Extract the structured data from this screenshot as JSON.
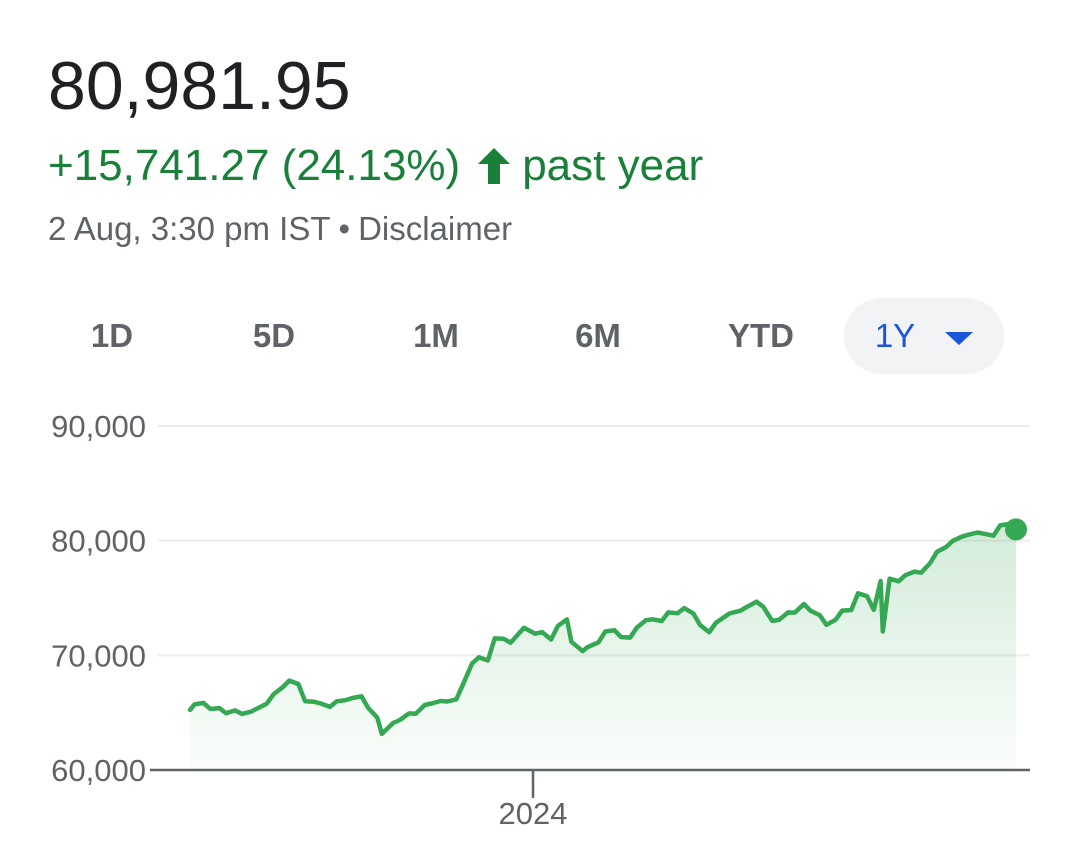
{
  "header": {
    "price": "80,981.95",
    "change": "+15,741.27 (24.13%)",
    "period": "past year",
    "timestamp": "2 Aug, 3:30 pm IST",
    "separator": "•",
    "disclaimer": "Disclaimer"
  },
  "tabs": [
    {
      "label": "1D",
      "active": false
    },
    {
      "label": "5D",
      "active": false
    },
    {
      "label": "1M",
      "active": false
    },
    {
      "label": "6M",
      "active": false
    },
    {
      "label": "YTD",
      "active": false
    },
    {
      "label": "1Y",
      "active": true
    }
  ],
  "colors": {
    "accent": "#188038",
    "line": "#34a853",
    "active_tab": "#1a56db",
    "grid": "#eeeeee",
    "axis": "#5f6368"
  },
  "icons": {
    "change_arrow": "arrow-up-icon",
    "dropdown": "caret-down-icon"
  },
  "chart_data": {
    "type": "area",
    "title": "",
    "xlabel": "",
    "ylabel": "",
    "ylim": [
      60000,
      90000
    ],
    "y_ticks": [
      {
        "value": 90000,
        "label": "90,000"
      },
      {
        "value": 80000,
        "label": "80,000"
      },
      {
        "value": 70000,
        "label": "70,000"
      },
      {
        "value": 60000,
        "label": "60,000"
      }
    ],
    "x_ticks": [
      {
        "value": "2024-01-01",
        "label": "2024"
      }
    ],
    "x_range": [
      "2023-08-02",
      "2024-08-02"
    ],
    "grid": true,
    "legend": "none",
    "series": [
      {
        "points": [
          [
            "2023-08-02",
            65240
          ],
          [
            "2023-08-04",
            65720
          ],
          [
            "2023-08-08",
            65850
          ],
          [
            "2023-08-11",
            65320
          ],
          [
            "2023-08-15",
            65400
          ],
          [
            "2023-08-18",
            64950
          ],
          [
            "2023-08-22",
            65200
          ],
          [
            "2023-08-25",
            64890
          ],
          [
            "2023-08-29",
            65080
          ],
          [
            "2023-09-01",
            65390
          ],
          [
            "2023-09-05",
            65780
          ],
          [
            "2023-09-08",
            66600
          ],
          [
            "2023-09-12",
            67200
          ],
          [
            "2023-09-15",
            67800
          ],
          [
            "2023-09-19",
            67500
          ],
          [
            "2023-09-22",
            66000
          ],
          [
            "2023-09-26",
            65950
          ],
          [
            "2023-09-29",
            65800
          ],
          [
            "2023-10-03",
            65500
          ],
          [
            "2023-10-06",
            65990
          ],
          [
            "2023-10-10",
            66100
          ],
          [
            "2023-10-13",
            66280
          ],
          [
            "2023-10-17",
            66430
          ],
          [
            "2023-10-20",
            65400
          ],
          [
            "2023-10-24",
            64570
          ],
          [
            "2023-10-26",
            63150
          ],
          [
            "2023-10-31",
            64100
          ],
          [
            "2023-11-03",
            64360
          ],
          [
            "2023-11-07",
            64940
          ],
          [
            "2023-11-10",
            64900
          ],
          [
            "2023-11-14",
            65670
          ],
          [
            "2023-11-17",
            65800
          ],
          [
            "2023-11-21",
            66020
          ],
          [
            "2023-11-24",
            65970
          ],
          [
            "2023-11-28",
            66170
          ],
          [
            "2023-12-01",
            67480
          ],
          [
            "2023-12-05",
            69300
          ],
          [
            "2023-12-08",
            69830
          ],
          [
            "2023-12-12",
            69550
          ],
          [
            "2023-12-15",
            71480
          ],
          [
            "2023-12-19",
            71440
          ],
          [
            "2023-12-22",
            71100
          ],
          [
            "2023-12-28",
            72400
          ],
          [
            "2024-01-02",
            71890
          ],
          [
            "2024-01-05",
            72030
          ],
          [
            "2024-01-09",
            71380
          ],
          [
            "2024-01-12",
            72570
          ],
          [
            "2024-01-16",
            73130
          ],
          [
            "2024-01-18",
            71180
          ],
          [
            "2024-01-23",
            70370
          ],
          [
            "2024-01-25",
            70700
          ],
          [
            "2024-01-30",
            71140
          ],
          [
            "2024-02-02",
            72080
          ],
          [
            "2024-02-06",
            72190
          ],
          [
            "2024-02-09",
            71600
          ],
          [
            "2024-02-13",
            71550
          ],
          [
            "2024-02-16",
            72430
          ],
          [
            "2024-02-20",
            73060
          ],
          [
            "2024-02-23",
            73140
          ],
          [
            "2024-02-27",
            72990
          ],
          [
            "2024-03-01",
            73750
          ],
          [
            "2024-03-05",
            73670
          ],
          [
            "2024-03-08",
            74120
          ],
          [
            "2024-03-12",
            73660
          ],
          [
            "2024-03-15",
            72650
          ],
          [
            "2024-03-19",
            72010
          ],
          [
            "2024-03-22",
            72830
          ],
          [
            "2024-03-28",
            73650
          ],
          [
            "2024-04-02",
            73900
          ],
          [
            "2024-04-05",
            74250
          ],
          [
            "2024-04-09",
            74680
          ],
          [
            "2024-04-12",
            74240
          ],
          [
            "2024-04-16",
            73000
          ],
          [
            "2024-04-19",
            73090
          ],
          [
            "2024-04-23",
            73740
          ],
          [
            "2024-04-26",
            73730
          ],
          [
            "2024-04-30",
            74480
          ],
          [
            "2024-05-03",
            73880
          ],
          [
            "2024-05-07",
            73510
          ],
          [
            "2024-05-10",
            72660
          ],
          [
            "2024-05-14",
            73100
          ],
          [
            "2024-05-17",
            73900
          ],
          [
            "2024-05-21",
            73950
          ],
          [
            "2024-05-24",
            75410
          ],
          [
            "2024-05-28",
            75170
          ],
          [
            "2024-05-31",
            73960
          ],
          [
            "2024-06-03",
            76470
          ],
          [
            "2024-06-04",
            72080
          ],
          [
            "2024-06-07",
            76690
          ],
          [
            "2024-06-11",
            76460
          ],
          [
            "2024-06-14",
            76990
          ],
          [
            "2024-06-18",
            77300
          ],
          [
            "2024-06-21",
            77210
          ],
          [
            "2024-06-25",
            78050
          ],
          [
            "2024-06-28",
            79030
          ],
          [
            "2024-07-02",
            79440
          ],
          [
            "2024-07-05",
            79990
          ],
          [
            "2024-07-09",
            80350
          ],
          [
            "2024-07-12",
            80520
          ],
          [
            "2024-07-16",
            80710
          ],
          [
            "2024-07-19",
            80600
          ],
          [
            "2024-07-23",
            80430
          ],
          [
            "2024-07-26",
            81330
          ],
          [
            "2024-07-30",
            81450
          ],
          [
            "2024-08-02",
            80981.95
          ]
        ]
      }
    ]
  }
}
